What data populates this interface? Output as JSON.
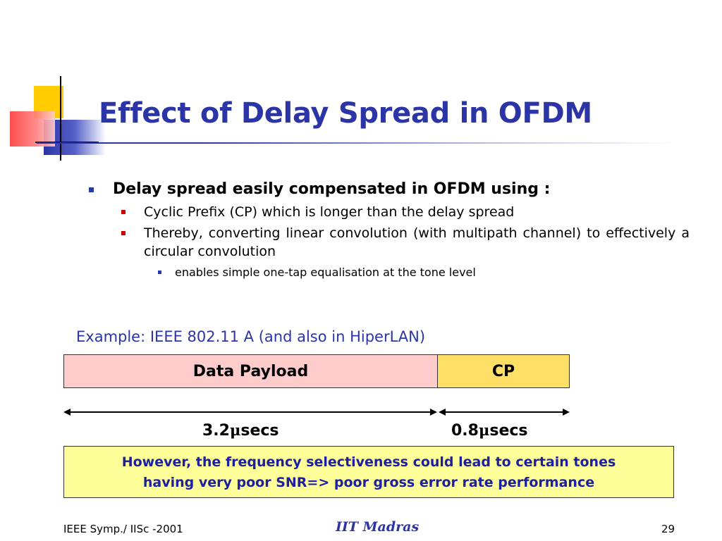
{
  "title": "Effect of Delay Spread in OFDM",
  "bullets": {
    "level1": "Delay spread easily compensated in OFDM using :",
    "level2": [
      "Cyclic Prefix (CP) which is longer than the delay spread",
      "Thereby, converting linear convolution (with multipath channel) to effectively a circular convolution"
    ],
    "level3": "enables simple one-tap equalisation at the tone level"
  },
  "example": "Example: IEEE 802.11 A (and also in HiperLAN)",
  "frame": {
    "payload_label": "Data Payload",
    "cp_label": "CP",
    "payload_duration_value": "3.2",
    "cp_duration_value": "0.8",
    "mu_symbol": "μ",
    "duration_unit": "secs"
  },
  "note": {
    "line1": "However, the frequency selectiveness could lead to certain tones",
    "line2": "having very poor SNR=> poor gross error rate performance"
  },
  "footer": {
    "left": "IEEE Symp./ IISc -2001",
    "center": "IIT Madras",
    "page_number": "29"
  },
  "colors": {
    "title": "#2b35a6",
    "payload_fill": "#ffcccc",
    "cp_fill": "#ffe066",
    "note_fill": "#ffff99",
    "note_text": "#1c20a0"
  }
}
